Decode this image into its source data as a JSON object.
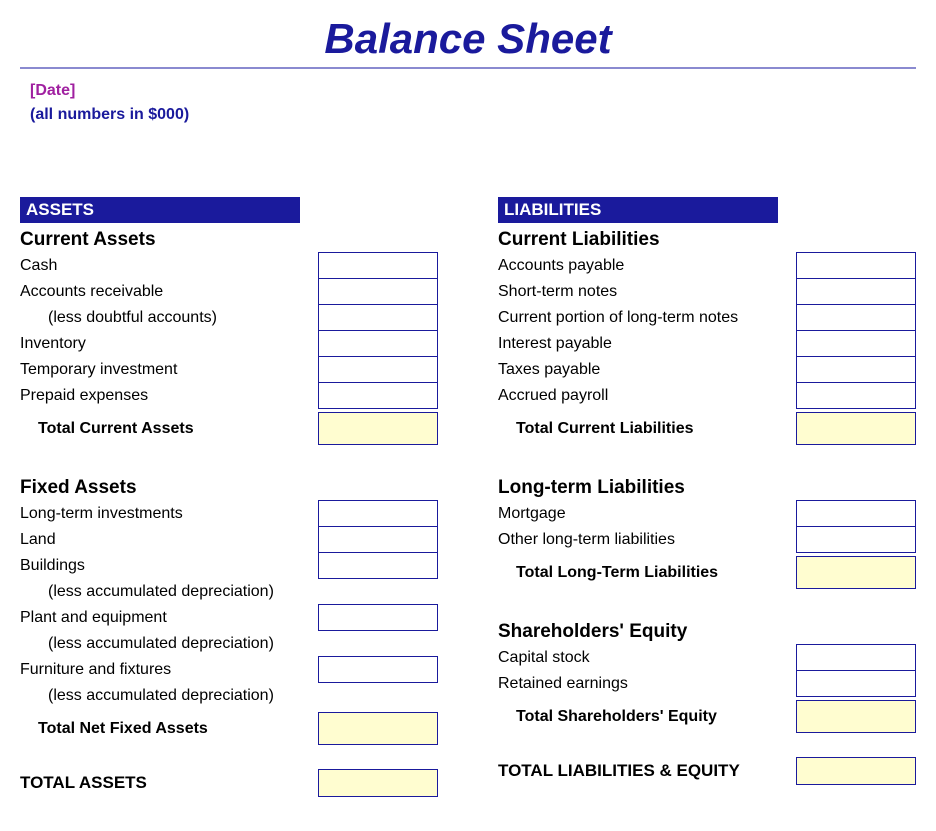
{
  "title": "Balance Sheet",
  "date_placeholder": "[Date]",
  "units_note": "(all numbers in $000)",
  "colors": {
    "title": "#1a1a9c",
    "rule": "#8a8ad0",
    "date": "#a020a0",
    "units": "#1a1a9c",
    "header_bg": "#1a1a9c",
    "cell_border": "#1a1a9c",
    "total_bg": "#fffdd0",
    "text": "#000000"
  },
  "left": {
    "header": "ASSETS",
    "groups": [
      {
        "title": "Current Assets",
        "rows": [
          {
            "label": "Cash"
          },
          {
            "label": "Accounts receivable"
          },
          {
            "label": "(less doubtful accounts)",
            "indent": true
          },
          {
            "label": "Inventory"
          },
          {
            "label": "Temporary investment"
          },
          {
            "label": "Prepaid expenses"
          }
        ],
        "total_label": "Total Current Assets"
      },
      {
        "title": "Fixed Assets",
        "rows": [
          {
            "label": "Long-term investments"
          },
          {
            "label": "Land"
          },
          {
            "label": "Buildings"
          },
          {
            "label": "(less accumulated depreciation)",
            "indent": true,
            "nocell": true
          },
          {
            "label": "Plant and equipment"
          },
          {
            "label": "(less accumulated depreciation)",
            "indent": true,
            "nocell": true
          },
          {
            "label": "Furniture and fixtures"
          },
          {
            "label": "(less accumulated depreciation)",
            "indent": true,
            "nocell": true
          }
        ],
        "total_label": "Total Net Fixed Assets"
      }
    ],
    "grand_total": "TOTAL ASSETS"
  },
  "right": {
    "header": "LIABILITIES",
    "groups": [
      {
        "title": "Current Liabilities",
        "rows": [
          {
            "label": "Accounts payable"
          },
          {
            "label": "Short-term notes"
          },
          {
            "label": "Current portion of long-term notes"
          },
          {
            "label": "Interest payable"
          },
          {
            "label": "Taxes payable"
          },
          {
            "label": "Accrued payroll"
          }
        ],
        "total_label": "Total Current Liabilities"
      },
      {
        "title": "Long-term Liabilities",
        "rows": [
          {
            "label": "Mortgage"
          },
          {
            "label": "Other long-term liabilities"
          }
        ],
        "total_label": "Total Long-Term Liabilities"
      },
      {
        "title": "Shareholders' Equity",
        "spacer_before": true,
        "rows": [
          {
            "label": "Capital stock"
          },
          {
            "label": "Retained earnings"
          }
        ],
        "total_label": "Total Shareholders' Equity"
      }
    ],
    "grand_total": "TOTAL LIABILITIES & EQUITY"
  }
}
